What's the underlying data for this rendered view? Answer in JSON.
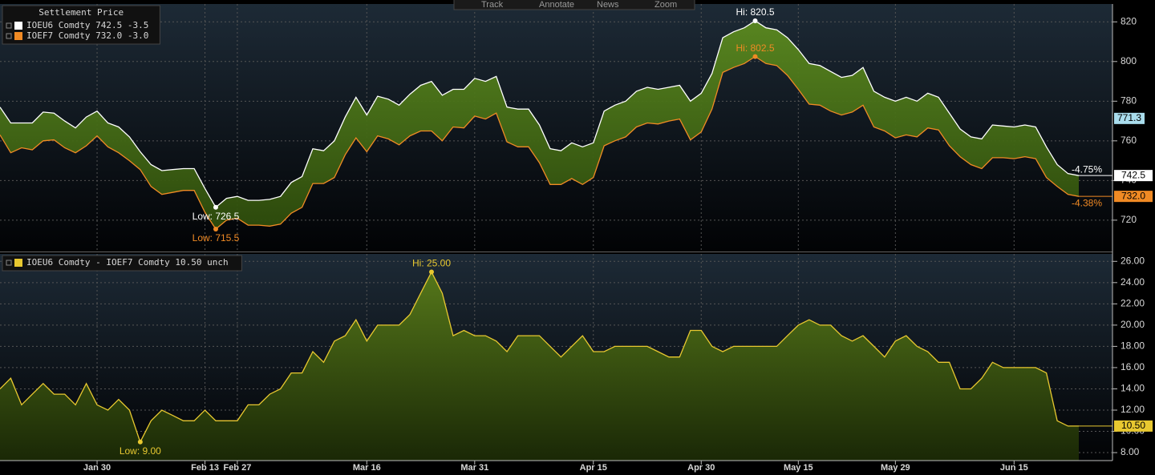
{
  "toolbar": [
    "Track",
    "Annotate",
    "News",
    "Zoom"
  ],
  "chart_data": [
    {
      "type": "line",
      "title": "Settlement Price",
      "series": [
        {
          "name": "IOEU6 Comdty 742.5 -3.5",
          "color": "#ffffff",
          "values": [
            777,
            769,
            769,
            769,
            774.5,
            774,
            770,
            766.5,
            772,
            775,
            769,
            767,
            762,
            754.5,
            748,
            745,
            745.5,
            746,
            746,
            736,
            726.5,
            731,
            732,
            730,
            730,
            730.5,
            732,
            739,
            742,
            756,
            755,
            760,
            772,
            782,
            773,
            782.5,
            781,
            778,
            783.5,
            788,
            790,
            783,
            786,
            786,
            791.5,
            790,
            792.5,
            777,
            776,
            776,
            768,
            756,
            755,
            759,
            757,
            759,
            775,
            778,
            780,
            785,
            787,
            786,
            787,
            788,
            780,
            784,
            794,
            812,
            815,
            817,
            820.5,
            817,
            816,
            812,
            806,
            799,
            798,
            795,
            792,
            793,
            797,
            785,
            782,
            780,
            782,
            780,
            784,
            782,
            774,
            766,
            762,
            761,
            768,
            767.5,
            767,
            768,
            767,
            757,
            748,
            743.5,
            742.5
          ]
        },
        {
          "name": "IOEF7 Comdty 732.0 -3.0",
          "color": "#f08a24",
          "values": [
            763,
            754,
            756.5,
            755.5,
            760,
            760.5,
            756.5,
            754,
            757.5,
            762.5,
            757,
            754,
            750,
            745.5,
            737,
            733,
            734,
            735,
            735,
            724,
            715.5,
            720,
            721,
            717.5,
            717.5,
            717,
            718,
            723.5,
            726.5,
            738.5,
            738.5,
            741.5,
            753,
            761.5,
            754.5,
            762.5,
            761,
            758,
            762.5,
            765,
            765,
            760,
            767,
            766.5,
            772.5,
            771,
            774,
            759.5,
            757,
            757,
            749,
            738,
            738,
            741,
            738,
            741.5,
            757.5,
            760,
            762,
            767,
            769,
            768.5,
            770,
            771,
            760.5,
            764.5,
            776,
            794.5,
            797,
            799,
            802.5,
            799,
            798,
            793,
            786,
            778.5,
            778,
            775,
            773,
            774.5,
            778,
            767,
            765,
            761.5,
            763,
            762,
            766.5,
            765.5,
            757.5,
            752,
            748,
            746,
            751.5,
            751.5,
            751,
            752,
            751,
            741.5,
            737,
            733,
            732
          ]
        }
      ],
      "fill_color": "#4a7418",
      "ylim": [
        705,
        829
      ],
      "yticks": [
        720,
        740,
        760,
        780,
        800,
        820
      ],
      "grid": true,
      "annotations": [
        "Hi: 820.5",
        "Hi: 802.5",
        "Low: 726.5",
        "Low: 715.5"
      ],
      "end_labels": [
        "742.5",
        "732.0"
      ],
      "change_labels": [
        "-4.75%",
        "-4.38%"
      ],
      "y_markers": [
        {
          "value": 771.3,
          "label": "771.3"
        }
      ]
    },
    {
      "type": "area",
      "categories": [
        null,
        null,
        null,
        null,
        null,
        null,
        null,
        null,
        null,
        "Jan 30",
        null,
        null,
        null,
        null,
        null,
        null,
        null,
        null,
        null,
        "Feb 13",
        null,
        null,
        "Feb 27",
        null,
        null,
        null,
        null,
        null,
        null,
        null,
        null,
        null,
        null,
        null,
        "Mar 16",
        null,
        null,
        null,
        null,
        null,
        null,
        null,
        null,
        null,
        "Mar 31",
        null,
        null,
        null,
        null,
        null,
        null,
        null,
        null,
        null,
        null,
        "Apr 15",
        null,
        null,
        null,
        null,
        null,
        null,
        null,
        null,
        null,
        "Apr 30",
        null,
        null,
        null,
        null,
        null,
        null,
        null,
        null,
        "May 15",
        null,
        null,
        null,
        null,
        null,
        null,
        null,
        null,
        "May 29",
        null,
        null,
        null,
        null,
        null,
        null,
        null,
        null,
        null,
        null,
        "Jun 15",
        null,
        null,
        null,
        null,
        null,
        null
      ],
      "series": [
        {
          "name": "IOEU6 Comdty - IOEF7 Comdty 10.50 unch",
          "color": "#e8c830",
          "values": [
            14,
            15,
            12.5,
            13.5,
            14.5,
            13.5,
            13.5,
            12.5,
            14.5,
            12.5,
            12,
            13,
            12,
            9,
            11,
            12,
            11.5,
            11,
            11,
            12,
            11,
            11,
            11,
            12.5,
            12.5,
            13.5,
            14,
            15.5,
            15.5,
            17.5,
            16.5,
            18.5,
            19,
            20.5,
            18.5,
            20,
            20,
            20,
            21,
            23,
            25,
            23,
            19,
            19.5,
            19,
            19,
            18.5,
            17.5,
            19,
            19,
            19,
            18,
            17,
            18,
            19,
            17.5,
            17.5,
            18,
            18,
            18,
            18,
            17.5,
            17,
            17,
            19.5,
            19.5,
            18,
            17.5,
            18,
            18,
            18,
            18,
            18,
            19,
            20,
            20.5,
            20,
            20,
            19,
            18.5,
            19,
            18,
            17,
            18.5,
            19,
            18,
            17.5,
            16.5,
            16.5,
            14,
            14,
            15,
            16.5,
            16,
            16,
            16,
            16,
            15.5,
            11,
            10.5,
            10.5
          ]
        }
      ],
      "fill_color": "#4b6a12",
      "ylim": [
        7.25,
        26.7
      ],
      "yticks": [
        {
          "value": 8,
          "label": "8.00"
        },
        {
          "value": 10,
          "label": "10.00"
        },
        {
          "value": 12,
          "label": "12.00"
        },
        {
          "value": 14,
          "label": "14.00"
        },
        {
          "value": 16,
          "label": "16.00"
        },
        {
          "value": 18,
          "label": "18.00"
        },
        {
          "value": 20,
          "label": "20.00"
        },
        {
          "value": 22,
          "label": "22.00"
        },
        {
          "value": 24,
          "label": "24.00"
        },
        {
          "value": 26,
          "label": "26.00"
        }
      ],
      "grid": true,
      "annotations": [
        "Hi: 25.00",
        "Low: 9.00"
      ],
      "end_labels": [
        "10.50"
      ]
    }
  ]
}
